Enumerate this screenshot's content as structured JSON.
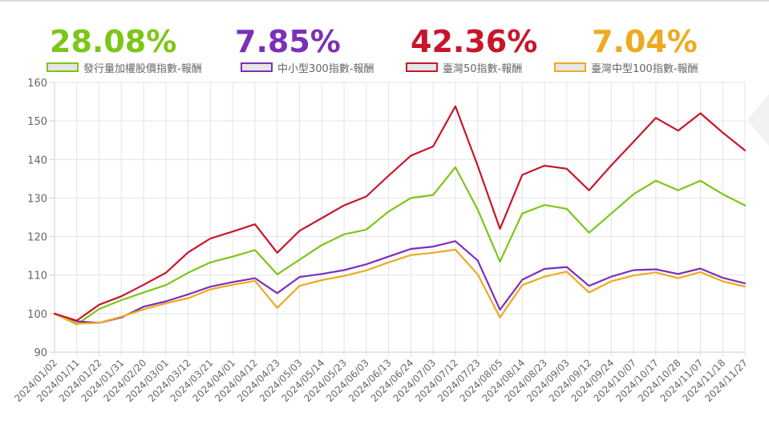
{
  "headlines": [
    {
      "value": "28.08%",
      "color": "#7cc618"
    },
    {
      "value": "7.85%",
      "color": "#7b30b8"
    },
    {
      "value": "42.36%",
      "color": "#c8152b"
    },
    {
      "value": "7.04%",
      "color": "#eeaa1f"
    }
  ],
  "chart_data": {
    "type": "line",
    "ylim": [
      90,
      160
    ],
    "yticks": [
      90,
      100,
      110,
      120,
      130,
      140,
      150,
      160
    ],
    "grid": true,
    "legend_position": "top",
    "x_tick_labels": [
      "2024/01/02",
      "2024/01/11",
      "2024/01/22",
      "2024/01/31",
      "2024/02/20",
      "2024/03/01",
      "2024/03/12",
      "2024/03/21",
      "2024/04/01",
      "2024/04/12",
      "2024/04/23",
      "2024/05/03",
      "2024/05/14",
      "2024/05/23",
      "2024/06/03",
      "2024/06/13",
      "2024/06/24",
      "2024/07/03",
      "2024/07/12",
      "2024/07/23",
      "2024/08/05",
      "2024/08/14",
      "2024/08/23",
      "2024/09/03",
      "2024/09/12",
      "2024/09/24",
      "2024/10/07",
      "2024/10/17",
      "2024/10/28",
      "2024/11/07",
      "2024/11/18",
      "2024/11/27"
    ],
    "series": [
      {
        "name": "發行量加權股價指數-報酬",
        "color": "#7cc618",
        "values": [
          100,
          97.2,
          101.2,
          103.5,
          105.5,
          107.4,
          110.6,
          113.3,
          114.8,
          116.5,
          110.2,
          114,
          117.8,
          120.6,
          121.8,
          126.5,
          130,
          130.8,
          138,
          127,
          113.5,
          126,
          128.2,
          127.2,
          121,
          126,
          131,
          134.5,
          132,
          134.5,
          131,
          128.1
        ]
      },
      {
        "name": "中小型300指數-報酬",
        "color": "#7b30b8",
        "values": [
          100,
          98,
          97.6,
          99,
          101.8,
          103.2,
          105,
          107,
          108.2,
          109.2,
          105.3,
          109.5,
          110.3,
          111.3,
          112.8,
          114.8,
          116.8,
          117.4,
          118.8,
          113.8,
          101,
          108.8,
          111.6,
          112.1,
          107.2,
          109.6,
          111.3,
          111.5,
          110.3,
          111.7,
          109.3,
          107.85
        ]
      },
      {
        "name": "臺灣50指數-報酬",
        "color": "#c8152b",
        "values": [
          100,
          98.2,
          102.3,
          104.5,
          107.5,
          110.6,
          115.9,
          119.5,
          121.3,
          123.2,
          115.8,
          121.5,
          124.8,
          128.1,
          130.4,
          135.8,
          141,
          143.4,
          153.8,
          138.4,
          122,
          136,
          138.4,
          137.6,
          132,
          138.5,
          144.6,
          150.8,
          147.5,
          152,
          147,
          142.36
        ]
      },
      {
        "name": "臺灣中型100指數-報酬",
        "color": "#eeaa1f",
        "values": [
          100,
          97.4,
          97.6,
          99.2,
          101.1,
          102.7,
          104,
          106.3,
          107.5,
          108.5,
          101.5,
          107.2,
          108.7,
          109.8,
          111.2,
          113.3,
          115.2,
          115.8,
          116.6,
          110.2,
          99,
          107.4,
          109.6,
          110.9,
          105.5,
          108.4,
          109.9,
          110.7,
          109.2,
          110.8,
          108.4,
          107.04
        ]
      }
    ]
  }
}
